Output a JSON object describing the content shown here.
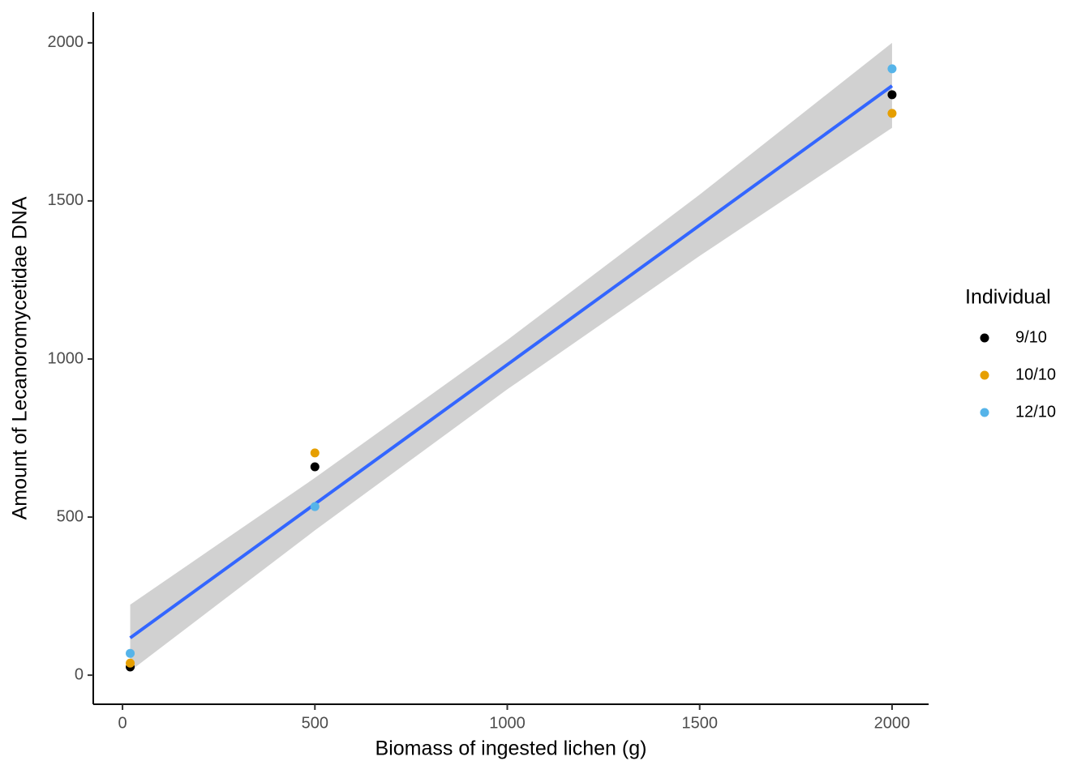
{
  "chart_data": {
    "type": "scatter",
    "x_label": "Biomass of ingested lichen (g)",
    "y_label": "Amount of Lecanoromycetidae DNA",
    "legend_title": "Individual",
    "legend_position": "right",
    "xlim": [
      -76,
      2095
    ],
    "xticks": [
      0,
      500,
      1000,
      1500,
      2000
    ],
    "ylim": [
      -92,
      2097
    ],
    "yticks": [
      0,
      500,
      1000,
      1500,
      2000
    ],
    "grid": false,
    "series": [
      {
        "name": "9/10",
        "color": "#000000",
        "x": [
          20,
          500,
          2000
        ],
        "values": [
          26,
          659,
          1836
        ]
      },
      {
        "name": "10/10",
        "color": "#E69F00",
        "x": [
          20,
          500,
          2000
        ],
        "values": [
          38,
          703,
          1777
        ]
      },
      {
        "name": "12/10",
        "color": "#56B4E9",
        "x": [
          20,
          500,
          2000
        ],
        "values": [
          69,
          533,
          1918
        ]
      }
    ],
    "fit": {
      "color": "#3366FF",
      "x": [
        20,
        2000
      ],
      "values": [
        118,
        1864
      ]
    },
    "band": {
      "color": "#cccccc",
      "x": [
        20,
        500,
        1000,
        1500,
        2000
      ],
      "lower": [
        13,
        458,
        904,
        1326,
        1731
      ],
      "upper": [
        223,
        624,
        1060,
        1520,
        2000
      ]
    }
  }
}
